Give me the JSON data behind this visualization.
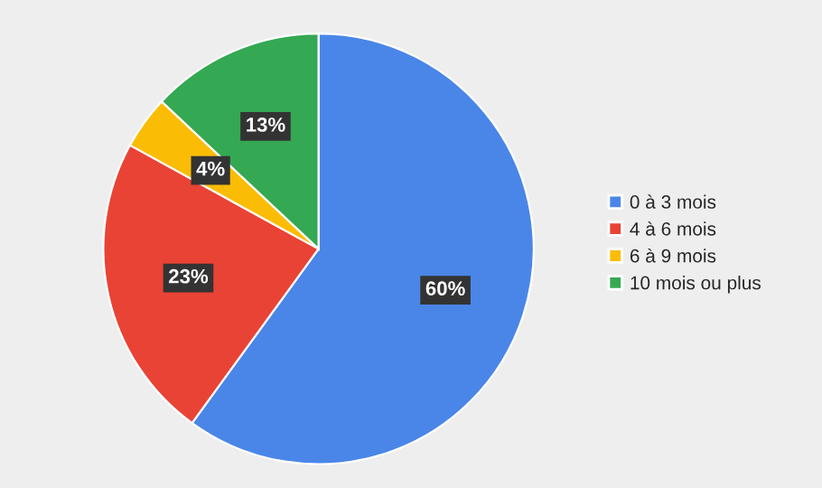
{
  "chart_data": {
    "type": "pie",
    "categories": [
      "0 à 3 mois",
      "4 à 6 mois",
      "6 à 9 mois",
      "10 mois ou plus"
    ],
    "values": [
      60,
      23,
      4,
      13
    ],
    "value_labels": [
      "60%",
      "23%",
      "4%",
      "13%"
    ],
    "colors": [
      "#4a86e8",
      "#e94335",
      "#fbbc05",
      "#34a853"
    ],
    "legend": "right"
  }
}
